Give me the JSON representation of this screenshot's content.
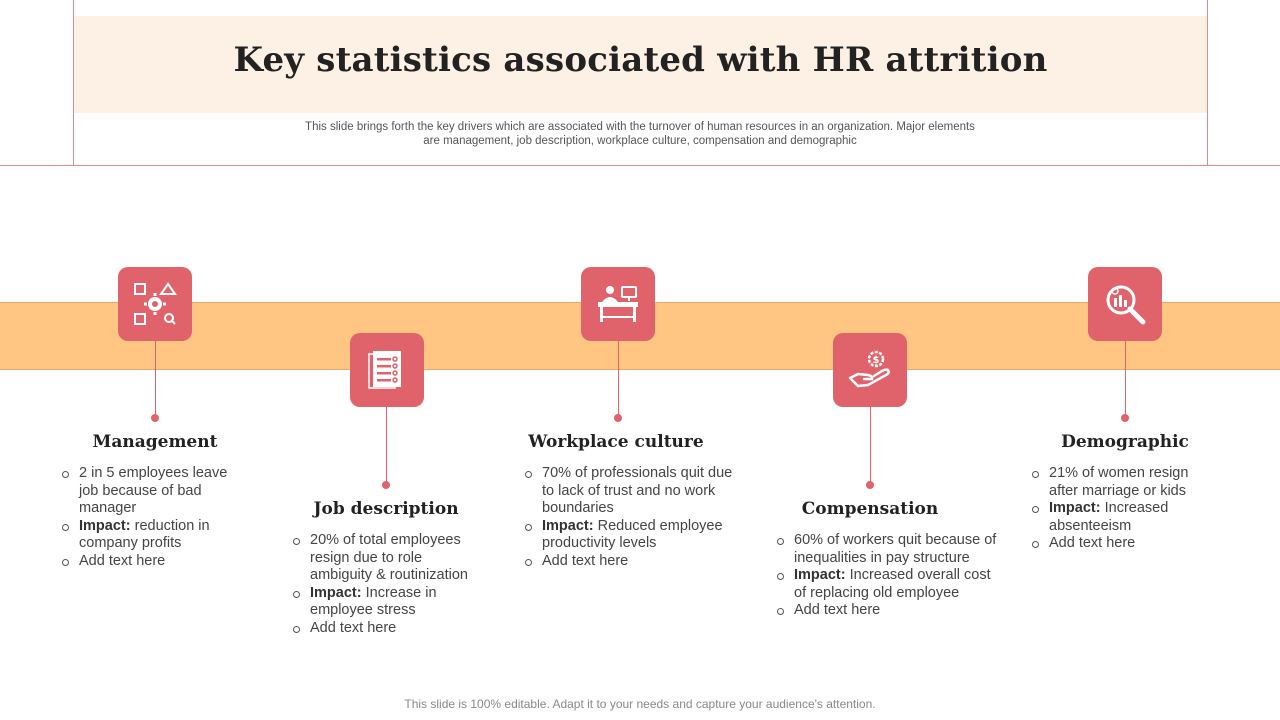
{
  "header": {
    "title": "Key statistics associated with HR attrition",
    "subtitle": "This slide brings forth the key drivers which are associated with the turnover of human resources in an organization. Major elements are management, job description, workplace culture, compensation and demographic"
  },
  "colors": {
    "accent": "#e0626b",
    "band": "#fec583",
    "title_band": "#fdf1e6"
  },
  "items": [
    {
      "icon": "management-icon",
      "heading": "Management",
      "bullets": [
        {
          "text": "2 in 5 employees leave job because of bad manager"
        },
        {
          "label": "Impact:",
          "text": "reduction in company profits"
        },
        {
          "text": "Add text here"
        }
      ]
    },
    {
      "icon": "job-description-icon",
      "heading": "Job description",
      "bullets": [
        {
          "text": "20% of total employees resign due to role ambiguity & routinization"
        },
        {
          "label": "Impact:",
          "text": "Increase in employee stress"
        },
        {
          "text": "Add text here"
        }
      ]
    },
    {
      "icon": "workplace-desk-icon",
      "heading": "Workplace culture",
      "bullets": [
        {
          "text": "70% of professionals quit due to lack of trust and no work boundaries"
        },
        {
          "label": "Impact:",
          "text": "Reduced employee productivity levels"
        },
        {
          "text": "Add text here"
        }
      ]
    },
    {
      "icon": "compensation-hand-icon",
      "heading": "Compensation",
      "bullets": [
        {
          "text": "60% of workers quit because of inequalities in pay structure"
        },
        {
          "label": "Impact:",
          "text": "Increased overall cost of replacing old employee"
        },
        {
          "text": "Add text here"
        }
      ]
    },
    {
      "icon": "demographic-analysis-icon",
      "heading": "Demographic",
      "bullets": [
        {
          "text": "21% of women resign after marriage or kids"
        },
        {
          "label": "Impact:",
          "text": "Increased absenteeism"
        },
        {
          "text": "Add text here"
        }
      ]
    }
  ],
  "footer": "This slide is 100% editable. Adapt it to your needs and capture your audience's attention."
}
